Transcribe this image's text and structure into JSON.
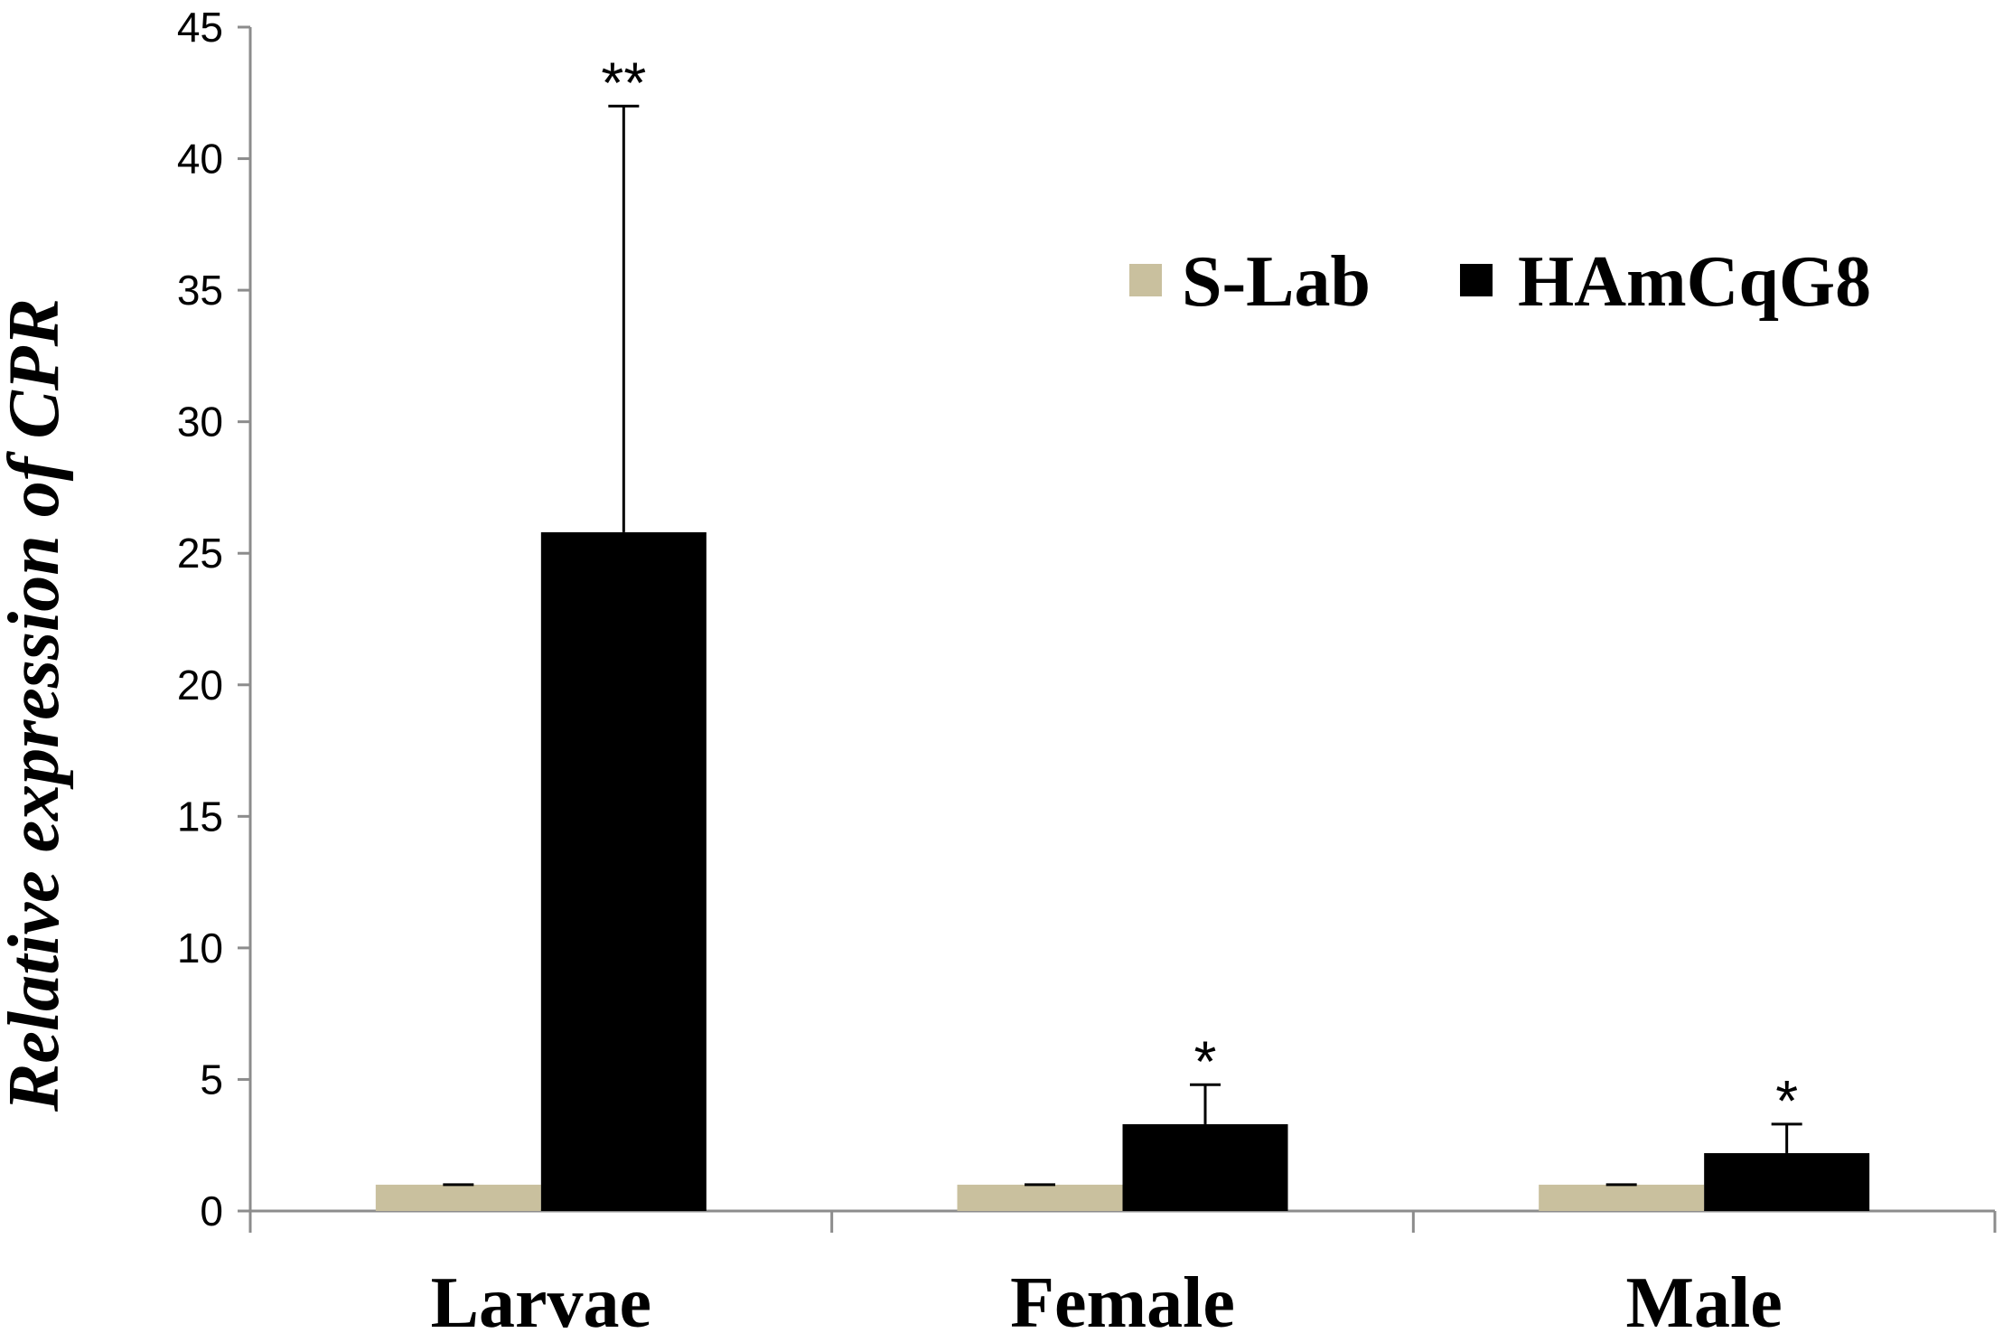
{
  "chart_data": {
    "type": "bar",
    "categories": [
      "Larvae",
      "Female",
      "Male"
    ],
    "series": [
      {
        "name": "S-Lab",
        "values": [
          1,
          1,
          1
        ],
        "errors": [
          0,
          0,
          0
        ],
        "color": "#c9c09e"
      },
      {
        "name": "HAmCqG8",
        "values": [
          25.8,
          3.3,
          2.2
        ],
        "errors": [
          16.2,
          1.5,
          1.1
        ],
        "color": "#000000"
      }
    ],
    "significance": [
      "**",
      "*",
      "*"
    ],
    "ylabel": "Relative expression of CPR",
    "xlabel": "",
    "ylim": [
      0,
      45
    ],
    "yticks": [
      "0",
      "5",
      "10",
      "15",
      "20",
      "25",
      "30",
      "35",
      "40",
      "45"
    ],
    "grid": false,
    "legend_position": "top-right"
  }
}
